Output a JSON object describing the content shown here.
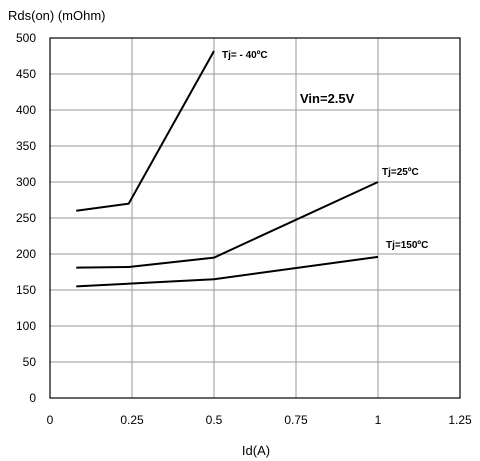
{
  "chart_data": {
    "type": "line",
    "ylabel": "Rds(on) (mOhm)",
    "xlabel": "Id(A)",
    "xlim": [
      0,
      1.25
    ],
    "ylim": [
      0,
      500
    ],
    "x_ticks": [
      0,
      0.25,
      0.5,
      0.75,
      1,
      1.25
    ],
    "x_tick_labels": [
      "0",
      "0.25",
      "0.5",
      "0.75",
      "1",
      "1.25"
    ],
    "y_ticks": [
      0,
      50,
      100,
      150,
      200,
      250,
      300,
      350,
      400,
      450,
      500
    ],
    "y_tick_labels": [
      "0",
      "50",
      "100",
      "150",
      "200",
      "250",
      "300",
      "350",
      "400",
      "450",
      "500"
    ],
    "grid": true,
    "annotation": "Vin=2.5V",
    "series": [
      {
        "name": "Tj= - 40ºC",
        "x": [
          0.08,
          0.24,
          0.5
        ],
        "y": [
          260,
          270,
          482
        ]
      },
      {
        "name": "Tj=25ºC",
        "x": [
          0.08,
          0.24,
          0.5,
          1
        ],
        "y": [
          181,
          182,
          195,
          300
        ]
      },
      {
        "name": "Tj=150ºC",
        "x": [
          0.08,
          0.5,
          1
        ],
        "y": [
          155,
          165,
          196
        ]
      }
    ],
    "color": "#000000"
  }
}
